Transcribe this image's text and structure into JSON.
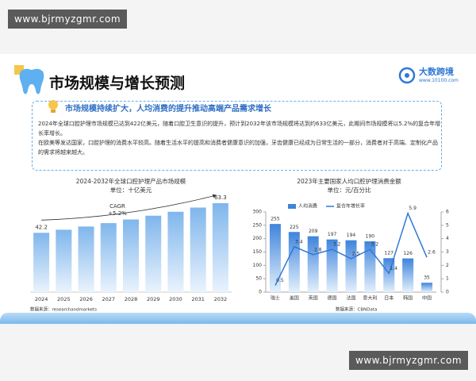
{
  "watermark": [
    "www.bjrmyzgmr.com",
    "www.bjrmyzgmr.com"
  ],
  "header": {
    "title": "市场规模与增长预测",
    "logo_name": "大数跨境",
    "logo_url": "www.10100.com"
  },
  "summary": {
    "heading": "市场规模持续扩大，人均消费的提升推动高端产品需求增长",
    "paragraphs": [
      "2024年全球口腔护理市场规模已达到422亿美元，随着口腔卫生意识的提升，预计到2032年该市场规模将达到约633亿美元，此期间市场规模将以5.2%的复合年增长率增长。",
      "在欧美等发达国家，口腔护理的消费水平较高。随着生活水平的提高和消费者健康意识的加强，牙齿健康已经成为日常生活的一部分，消费者对于高端、定制化产品的需求将越来越大。"
    ]
  },
  "chart_data": [
    {
      "type": "bar",
      "title": "2024-2032年全球口腔护理产品市场规模",
      "subtitle": "单位：十亿美元",
      "categories": [
        "2024",
        "2025",
        "2026",
        "2027",
        "2028",
        "2029",
        "2030",
        "2031",
        "2032"
      ],
      "values": [
        42.2,
        44.4,
        46.7,
        49.1,
        51.7,
        54.4,
        57.2,
        60.2,
        63.3
      ],
      "value_labels": [
        "42.2",
        null,
        null,
        null,
        null,
        null,
        null,
        null,
        "63.3"
      ],
      "color": "#6aaee8",
      "annotation": [
        "CAGR",
        "+5.2%"
      ],
      "source": "数据来源：researchandmarkets"
    },
    {
      "type": "combo",
      "title": "2023年主要国家人均口腔护理消费金额",
      "subtitle": "单位：元/百分比",
      "categories": [
        "瑞士",
        "美国",
        "英国",
        "德国",
        "法国",
        "意大利",
        "日本",
        "韩国",
        "中国"
      ],
      "series": [
        {
          "name": "人均消费",
          "type": "bar",
          "color": "#3f84dc",
          "values": [
            255,
            225,
            209,
            197,
            194,
            190,
            127,
            126,
            35
          ]
        },
        {
          "name": "复合年增长率",
          "type": "line",
          "axis": "y2",
          "color": "#2f78d6",
          "values": [
            0.5,
            3.4,
            2.8,
            3.2,
            2.5,
            3.2,
            1.4,
            5.9,
            2.6
          ]
        }
      ],
      "ylim": [
        0,
        300
      ],
      "yticks": [
        0,
        50,
        100,
        150,
        200,
        250,
        300
      ],
      "y2lim": [
        0,
        6
      ],
      "y2ticks": [
        0,
        1,
        2,
        3,
        4,
        5,
        6
      ],
      "source": "数据来源：CBNData"
    }
  ]
}
